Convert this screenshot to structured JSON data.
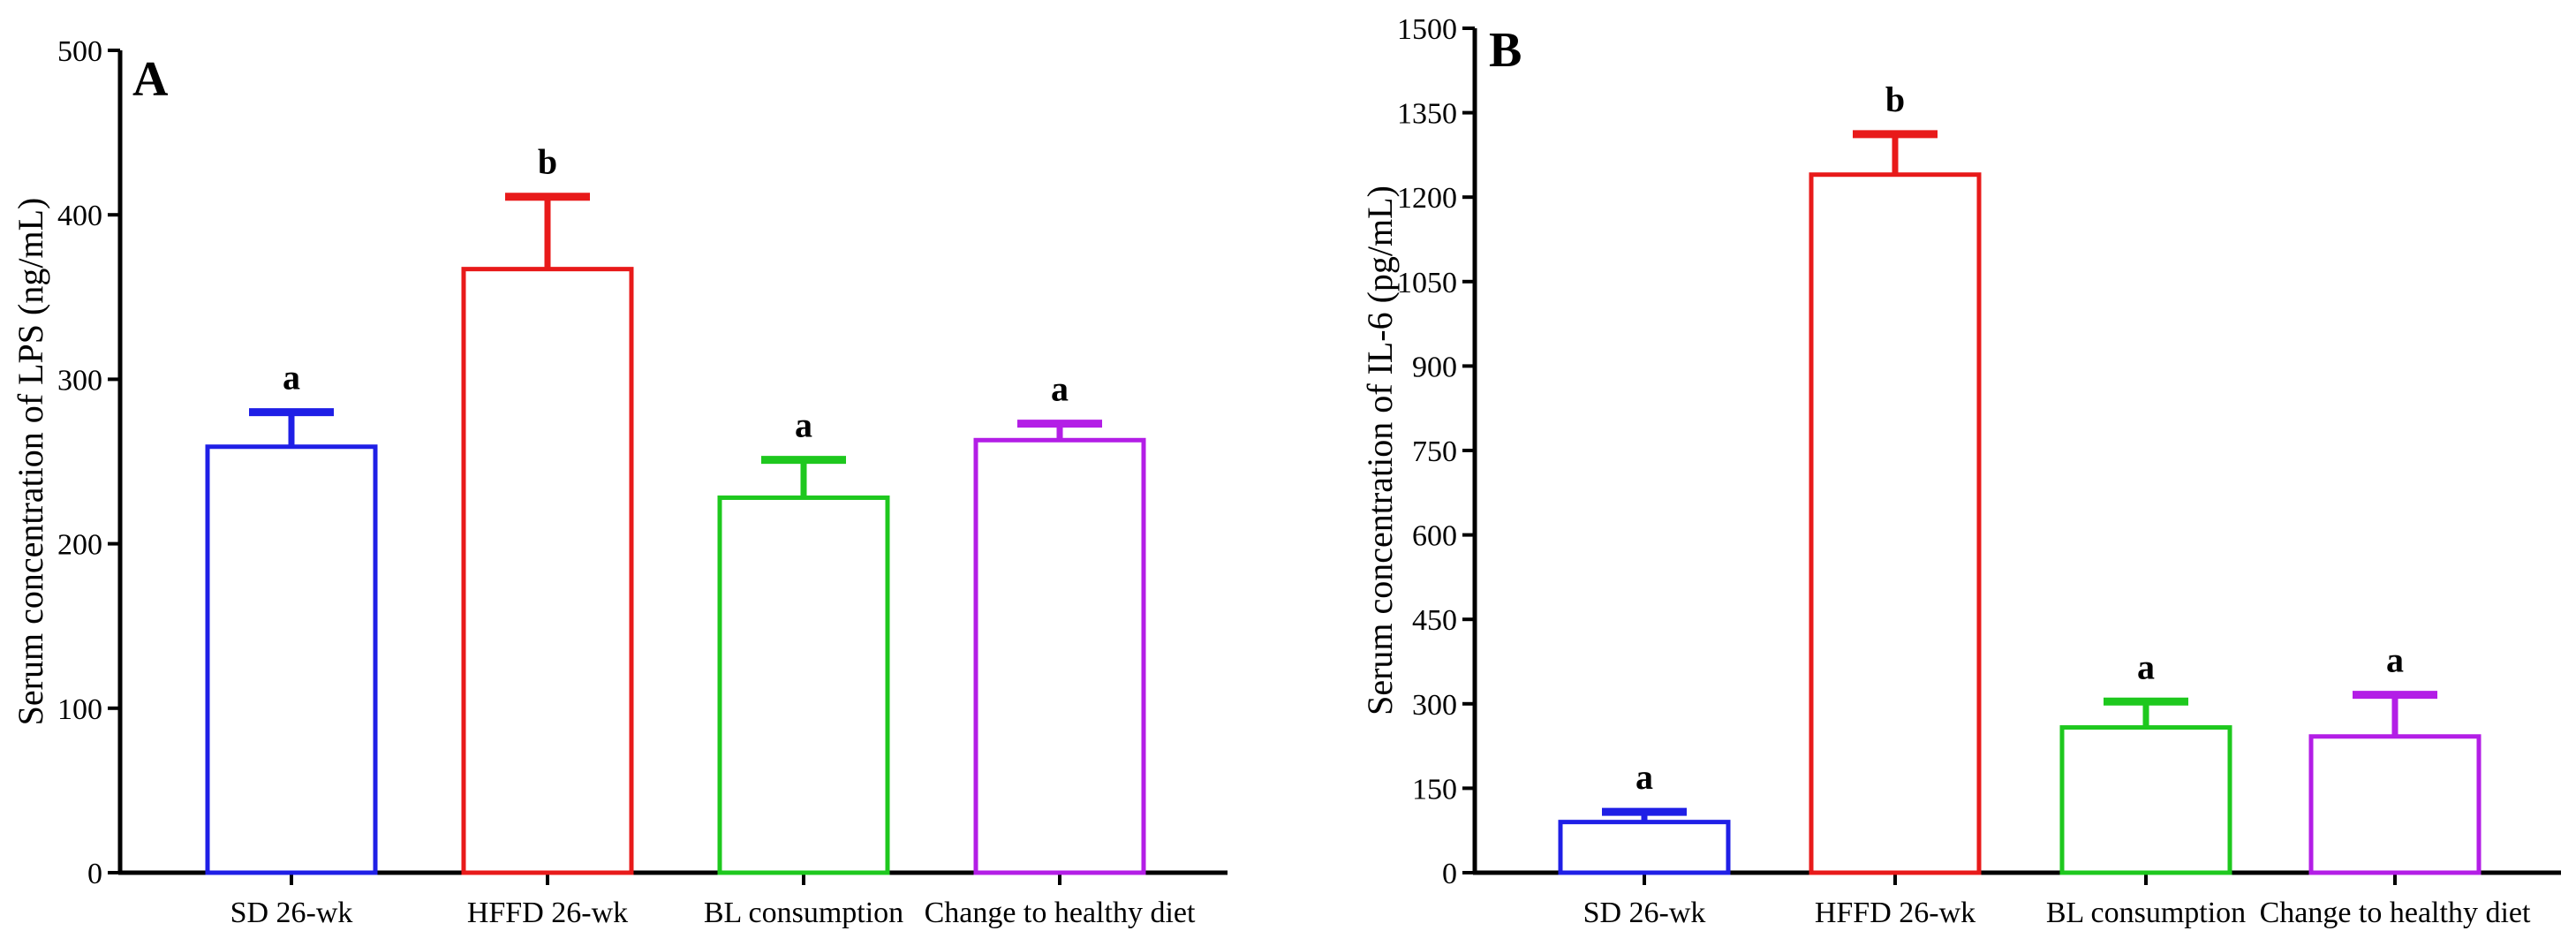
{
  "chart_data": [
    {
      "type": "bar",
      "panel_label": "A",
      "title": "",
      "xlabel": "",
      "ylabel": "Serum concentration of LPS (ng/mL)",
      "categories": [
        "SD 26-wk",
        "HFFD 26-wk",
        "BL consumption",
        "Change to healthy diet"
      ],
      "values": [
        259,
        367,
        228,
        263
      ],
      "error_upper": [
        280,
        411,
        251,
        273
      ],
      "significance": [
        "a",
        "b",
        "a",
        "a"
      ],
      "colors": [
        "#1f1fe6",
        "#e81a1a",
        "#1ec81e",
        "#b31ee6"
      ],
      "ylim": [
        0,
        500
      ],
      "yticks": [
        "0",
        "100",
        "200",
        "300",
        "400",
        "500"
      ],
      "grid": false
    },
    {
      "type": "bar",
      "panel_label": "B",
      "title": "",
      "xlabel": "",
      "ylabel": "Serum concentration of IL-6 (pg/mL)",
      "categories": [
        "SD 26-wk",
        "HFFD 26-wk",
        "BL consumption",
        "Change to healthy diet"
      ],
      "values": [
        90,
        1240,
        258,
        242
      ],
      "error_upper": [
        108,
        1312,
        304,
        316
      ],
      "significance": [
        "a",
        "b",
        "a",
        "a"
      ],
      "colors": [
        "#1f1fe6",
        "#e81a1a",
        "#1ec81e",
        "#b31ee6"
      ],
      "ylim": [
        0,
        1500
      ],
      "yticks": [
        "0",
        "150",
        "300",
        "450",
        "600",
        "750",
        "900",
        "1050",
        "1200",
        "1350",
        "1500"
      ],
      "grid": false
    }
  ]
}
